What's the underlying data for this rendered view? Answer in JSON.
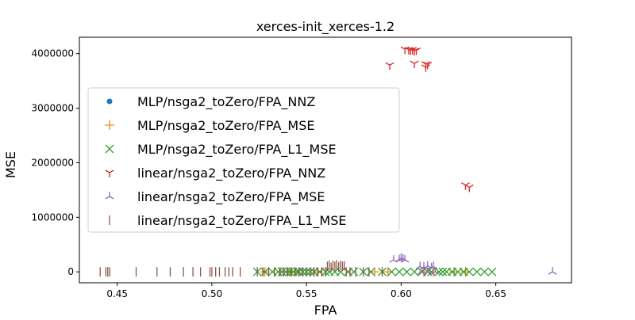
{
  "chart_data": {
    "type": "scatter",
    "title": "xerces-init_xerces-1.2",
    "xlabel": "FPA",
    "ylabel": "MSE",
    "xlim": [
      0.43,
      0.69
    ],
    "ylim": [
      -200000,
      4300000
    ],
    "xticks": [
      0.45,
      0.5,
      0.55,
      0.6,
      0.65
    ],
    "xtick_labels": [
      "0.45",
      "0.50",
      "0.55",
      "0.60",
      "0.65"
    ],
    "yticks": [
      0,
      1000000,
      2000000,
      3000000,
      4000000
    ],
    "ytick_labels": [
      "0",
      "1000000",
      "2000000",
      "3000000",
      "4000000"
    ],
    "grid": false,
    "legend_position": "center-left",
    "series": [
      {
        "name": "MLP/nsga2_toZero/FPA_NNZ",
        "marker": "dot",
        "color": "#1f77b4",
        "points": []
      },
      {
        "name": "MLP/nsga2_toZero/FPA_MSE",
        "marker": "plus",
        "color": "#ff7f0e",
        "points": [
          [
            0.528,
            0
          ],
          [
            0.541,
            0
          ],
          [
            0.556,
            0
          ],
          [
            0.586,
            0
          ],
          [
            0.593,
            0
          ],
          [
            0.612,
            0
          ],
          [
            0.617,
            0
          ],
          [
            0.628,
            0
          ],
          [
            0.634,
            0
          ]
        ]
      },
      {
        "name": "MLP/nsga2_toZero/FPA_L1_MSE",
        "marker": "x",
        "color": "#2ca02c",
        "points": [
          [
            0.524,
            0
          ],
          [
            0.528,
            0
          ],
          [
            0.532,
            0
          ],
          [
            0.535,
            0
          ],
          [
            0.537,
            0
          ],
          [
            0.539,
            0
          ],
          [
            0.541,
            0
          ],
          [
            0.543,
            0
          ],
          [
            0.545,
            0
          ],
          [
            0.546,
            0
          ],
          [
            0.548,
            0
          ],
          [
            0.55,
            0
          ],
          [
            0.552,
            0
          ],
          [
            0.554,
            0
          ],
          [
            0.557,
            0
          ],
          [
            0.56,
            0
          ],
          [
            0.562,
            0
          ],
          [
            0.565,
            0
          ],
          [
            0.568,
            0
          ],
          [
            0.572,
            0
          ],
          [
            0.575,
            0
          ],
          [
            0.58,
            0
          ],
          [
            0.584,
            0
          ],
          [
            0.59,
            0
          ],
          [
            0.595,
            0
          ],
          [
            0.599,
            0
          ],
          [
            0.603,
            0
          ],
          [
            0.607,
            0
          ],
          [
            0.611,
            0
          ],
          [
            0.614,
            0
          ],
          [
            0.616,
            0
          ],
          [
            0.62,
            0
          ],
          [
            0.622,
            0
          ],
          [
            0.624,
            0
          ],
          [
            0.627,
            0
          ],
          [
            0.63,
            0
          ],
          [
            0.633,
            0
          ],
          [
            0.636,
            0
          ],
          [
            0.64,
            0
          ],
          [
            0.644,
            0
          ],
          [
            0.648,
            0
          ]
        ]
      },
      {
        "name": "linear/nsga2_toZero/FPA_NNZ",
        "marker": "tri_down",
        "color": "#d62728",
        "points": [
          [
            0.594,
            3790000
          ],
          [
            0.602,
            4080000
          ],
          [
            0.604,
            4070000
          ],
          [
            0.605,
            4060000
          ],
          [
            0.606,
            4070000
          ],
          [
            0.607,
            4050000
          ],
          [
            0.608,
            4060000
          ],
          [
            0.607,
            3820000
          ],
          [
            0.613,
            3810000
          ],
          [
            0.613,
            3750000
          ],
          [
            0.614,
            3800000
          ],
          [
            0.634,
            1590000
          ],
          [
            0.636,
            1550000
          ]
        ]
      },
      {
        "name": "linear/nsga2_toZero/FPA_MSE",
        "marker": "tri_up",
        "color": "#9467bd",
        "points": [
          [
            0.596,
            220000
          ],
          [
            0.599,
            230000
          ],
          [
            0.6,
            250000
          ],
          [
            0.601,
            240000
          ],
          [
            0.602,
            220000
          ],
          [
            0.61,
            100000
          ],
          [
            0.612,
            90000
          ],
          [
            0.614,
            110000
          ],
          [
            0.616,
            80000
          ],
          [
            0.617,
            100000
          ],
          [
            0.611,
            0
          ],
          [
            0.614,
            0
          ],
          [
            0.618,
            0
          ],
          [
            0.68,
            0
          ]
        ]
      },
      {
        "name": "linear/nsga2_toZero/FPA_L1_MSE",
        "marker": "vline",
        "color": "#8c564b",
        "points": [
          [
            0.441,
            0
          ],
          [
            0.444,
            0
          ],
          [
            0.445,
            0
          ],
          [
            0.446,
            0
          ],
          [
            0.46,
            0
          ],
          [
            0.471,
            0
          ],
          [
            0.478,
            0
          ],
          [
            0.485,
            0
          ],
          [
            0.49,
            0
          ],
          [
            0.494,
            0
          ],
          [
            0.499,
            0
          ],
          [
            0.5,
            0
          ],
          [
            0.502,
            0
          ],
          [
            0.504,
            0
          ],
          [
            0.507,
            0
          ],
          [
            0.509,
            0
          ],
          [
            0.511,
            0
          ],
          [
            0.515,
            0
          ],
          [
            0.524,
            0
          ],
          [
            0.527,
            0
          ],
          [
            0.53,
            0
          ],
          [
            0.533,
            0
          ],
          [
            0.536,
            0
          ],
          [
            0.538,
            0
          ],
          [
            0.54,
            0
          ],
          [
            0.542,
            0
          ],
          [
            0.544,
            0
          ],
          [
            0.546,
            0
          ],
          [
            0.548,
            0
          ],
          [
            0.55,
            0
          ],
          [
            0.552,
            0
          ],
          [
            0.554,
            0
          ],
          [
            0.556,
            0
          ],
          [
            0.558,
            0
          ],
          [
            0.56,
            0
          ],
          [
            0.561,
            100000
          ],
          [
            0.562,
            120000
          ],
          [
            0.563,
            80000
          ],
          [
            0.564,
            120000
          ],
          [
            0.565,
            100000
          ],
          [
            0.566,
            130000
          ],
          [
            0.567,
            90000
          ],
          [
            0.568,
            120000
          ],
          [
            0.569,
            100000
          ],
          [
            0.57,
            110000
          ],
          [
            0.571,
            0
          ],
          [
            0.573,
            0
          ],
          [
            0.576,
            0
          ],
          [
            0.58,
            0
          ],
          [
            0.583,
            0
          ],
          [
            0.59,
            0
          ]
        ]
      }
    ]
  }
}
